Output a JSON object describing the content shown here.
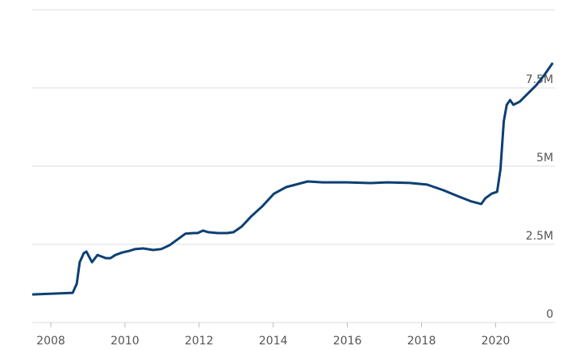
{
  "chart_data": {
    "type": "line",
    "x": [
      2007.5,
      2008.59,
      2008.7,
      2008.78,
      2008.89,
      2008.96,
      2009.11,
      2009.26,
      2009.37,
      2009.48,
      2009.61,
      2009.74,
      2009.93,
      2010.11,
      2010.28,
      2010.5,
      2010.76,
      2010.98,
      2011.2,
      2011.41,
      2011.63,
      2011.85,
      2011.96,
      2012.11,
      2012.24,
      2012.5,
      2012.76,
      2012.93,
      2013.15,
      2013.41,
      2013.7,
      2014.02,
      2014.35,
      2014.67,
      2014.93,
      2015.33,
      2015.98,
      2016.63,
      2017.07,
      2017.72,
      2018.15,
      2018.59,
      2019.02,
      2019.35,
      2019.61,
      2019.72,
      2019.89,
      2020.04,
      2020.13,
      2020.22,
      2020.3,
      2020.39,
      2020.48,
      2020.65,
      2020.87,
      2021.09,
      2021.3,
      2021.54
    ],
    "series": [
      {
        "color": "#0d3f74",
        "values": [
          900000,
          950000,
          1240000,
          1930000,
          2220000,
          2270000,
          1930000,
          2160000,
          2110000,
          2060000,
          2060000,
          2160000,
          2240000,
          2290000,
          2350000,
          2370000,
          2320000,
          2350000,
          2470000,
          2650000,
          2840000,
          2860000,
          2860000,
          2940000,
          2890000,
          2860000,
          2860000,
          2890000,
          3070000,
          3400000,
          3710000,
          4120000,
          4330000,
          4430000,
          4510000,
          4480000,
          4480000,
          4460000,
          4480000,
          4460000,
          4410000,
          4230000,
          4020000,
          3870000,
          3790000,
          3970000,
          4120000,
          4180000,
          4900000,
          6440000,
          6960000,
          7110000,
          6960000,
          7060000,
          7320000,
          7580000,
          7890000,
          8300000
        ]
      }
    ],
    "xlim": [
      2007.5,
      2021.6
    ],
    "xticks": [
      2008,
      2010,
      2012,
      2014,
      2016,
      2018,
      2020
    ],
    "ylim": [
      0,
      10000000
    ],
    "yticks": [
      {
        "value": 0,
        "label": "0"
      },
      {
        "value": 2500000,
        "label": "2.5M"
      },
      {
        "value": 5000000,
        "label": "5M"
      },
      {
        "value": 7500000,
        "label": "7.5M"
      }
    ],
    "grid": true
  }
}
